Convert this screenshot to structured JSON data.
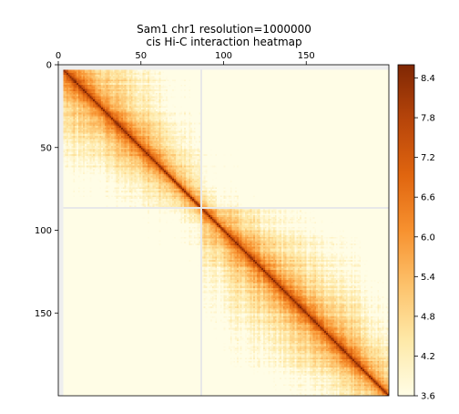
{
  "chart_data": {
    "type": "heatmap",
    "title": "Sam1 chr1 resolution=1000000",
    "subtitle": "cis Hi-C interaction heatmap",
    "n_bins": 200,
    "xlim": [
      0,
      200
    ],
    "ylim": [
      0,
      200
    ],
    "x_ticks": [
      0,
      50,
      100,
      150
    ],
    "y_ticks": [
      0,
      50,
      100,
      150
    ],
    "x_tick_labels": [
      "0",
      "50",
      "100",
      "150"
    ],
    "y_tick_labels": [
      "0",
      "50",
      "100",
      "150"
    ],
    "x_axis_position": "top",
    "xlabel": "",
    "ylabel": "",
    "colorbar": {
      "min": 3.6,
      "max": 8.6,
      "ticks": [
        3.6,
        4.2,
        4.8,
        5.4,
        6.0,
        6.6,
        7.2,
        7.8,
        8.4
      ],
      "tick_labels": [
        "3.6",
        "4.2",
        "4.8",
        "5.4",
        "6.0",
        "6.6",
        "7.2",
        "7.8",
        "8.4"
      ],
      "colors": [
        "#fffde6",
        "#fee9a8",
        "#fdc26b",
        "#f7912f",
        "#e0650f",
        "#b7450a",
        "#7f2704"
      ],
      "position": "right"
    },
    "missing_bins": [
      0,
      1,
      2,
      86
    ],
    "diagonal_value": 8.5,
    "matrix_blocks": [
      {
        "range": [
          0,
          86
        ],
        "level": "high"
      },
      {
        "range": [
          86,
          200
        ],
        "level": "high"
      }
    ],
    "grid": false
  }
}
